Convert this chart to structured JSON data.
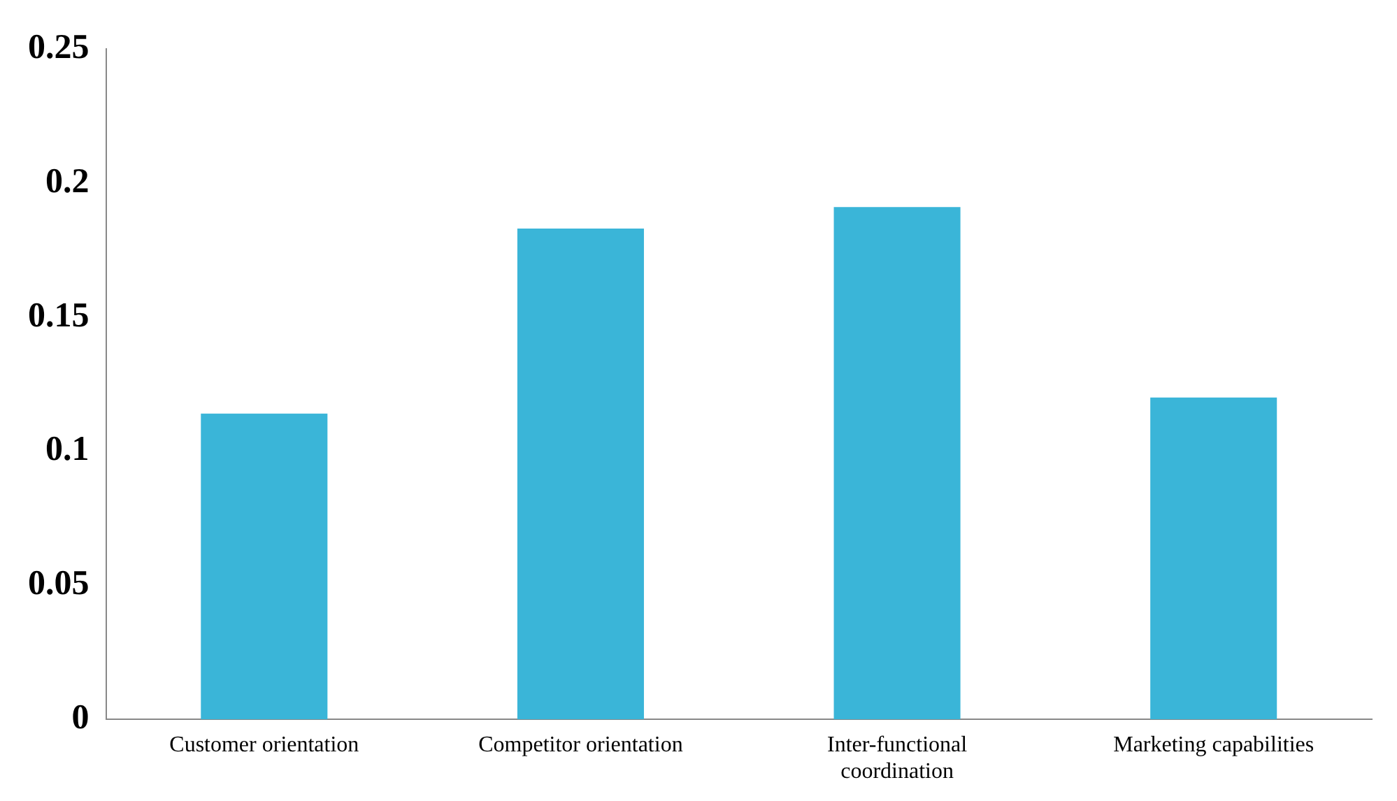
{
  "chart_data": {
    "type": "bar",
    "categories": [
      "Customer orientation",
      "Competitor orientation",
      "Inter-functional coordination",
      "Marketing capabilities"
    ],
    "values": [
      0.114,
      0.183,
      0.191,
      0.12
    ],
    "color": "#3ab5d8",
    "ylim": [
      0,
      0.25
    ],
    "yticks": [
      0,
      0.05,
      0.1,
      0.15,
      0.2,
      0.25
    ],
    "grid": false,
    "legend": false
  }
}
